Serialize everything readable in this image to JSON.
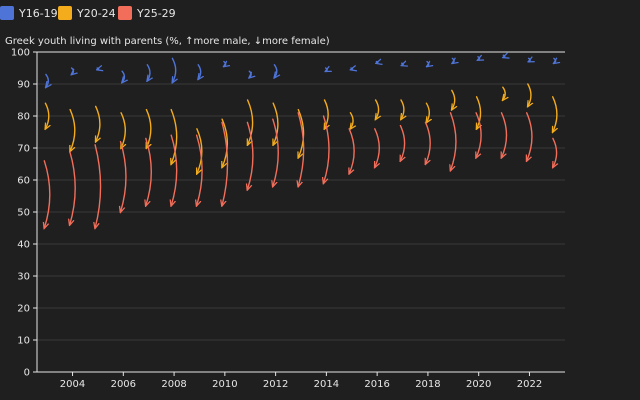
{
  "chart_data": {
    "type": "arrow-scatter",
    "title": "Greek youth living with parents (%, ↑more male, ↓more female)",
    "xlabel": "",
    "ylabel": "",
    "ylim": [
      0,
      100
    ],
    "yticks": [
      0,
      10,
      20,
      30,
      40,
      50,
      60,
      70,
      80,
      90,
      100
    ],
    "xlim": [
      2002.6,
      2023.4
    ],
    "xticks": [
      2004,
      2006,
      2008,
      2010,
      2012,
      2014,
      2016,
      2018,
      2020,
      2022
    ],
    "grid": true,
    "legend": "top-left",
    "series": [
      {
        "name": "Y16-19",
        "color": "#4f74d8",
        "points": [
          {
            "x": 2003,
            "male": 93,
            "female": 89
          },
          {
            "x": 2004,
            "male": 95,
            "female": 93
          },
          {
            "x": 2005,
            "male": 95,
            "female": 94.5
          },
          {
            "x": 2006,
            "male": 94,
            "female": 90.5
          },
          {
            "x": 2007,
            "male": 96,
            "female": 91
          },
          {
            "x": 2008,
            "male": 98,
            "female": 90.5
          },
          {
            "x": 2009,
            "male": 96,
            "female": 91.5
          },
          {
            "x": 2010,
            "male": 97,
            "female": 95.5
          },
          {
            "x": 2011,
            "male": 94,
            "female": 92
          },
          {
            "x": 2012,
            "male": 96,
            "female": 92
          },
          {
            "x": 2014,
            "male": 95,
            "female": 94
          },
          {
            "x": 2015,
            "male": 95,
            "female": 94.5
          },
          {
            "x": 2016,
            "male": 97,
            "female": 96.5
          },
          {
            "x": 2017,
            "male": 96.5,
            "female": 95.8
          },
          {
            "x": 2018,
            "male": 97,
            "female": 95.5
          },
          {
            "x": 2019,
            "male": 98,
            "female": 96.5
          },
          {
            "x": 2020,
            "male": 98.5,
            "female": 97.5
          },
          {
            "x": 2021,
            "male": 99,
            "female": 98.3
          },
          {
            "x": 2022,
            "male": 98,
            "female": 97
          },
          {
            "x": 2023,
            "male": 98,
            "female": 96.5
          }
        ]
      },
      {
        "name": "Y20-24",
        "color": "#f4ac1d",
        "points": [
          {
            "x": 2003,
            "male": 84,
            "female": 76
          },
          {
            "x": 2004,
            "male": 82,
            "female": 69
          },
          {
            "x": 2005,
            "male": 83,
            "female": 72
          },
          {
            "x": 2006,
            "male": 81,
            "female": 70
          },
          {
            "x": 2007,
            "male": 82,
            "female": 70
          },
          {
            "x": 2008,
            "male": 82,
            "female": 65
          },
          {
            "x": 2009,
            "male": 76,
            "female": 62
          },
          {
            "x": 2010,
            "male": 79,
            "female": 64
          },
          {
            "x": 2011,
            "male": 85,
            "female": 71
          },
          {
            "x": 2012,
            "male": 84,
            "female": 71
          },
          {
            "x": 2013,
            "male": 82,
            "female": 67
          },
          {
            "x": 2014,
            "male": 85,
            "female": 76
          },
          {
            "x": 2015,
            "male": 81,
            "female": 76
          },
          {
            "x": 2016,
            "male": 85,
            "female": 79
          },
          {
            "x": 2017,
            "male": 85,
            "female": 79
          },
          {
            "x": 2018,
            "male": 84,
            "female": 78
          },
          {
            "x": 2019,
            "male": 88,
            "female": 82
          },
          {
            "x": 2020,
            "male": 86,
            "female": 76
          },
          {
            "x": 2021,
            "male": 89,
            "female": 85
          },
          {
            "x": 2022,
            "male": 90,
            "female": 83
          },
          {
            "x": 2023,
            "male": 86,
            "female": 75
          }
        ]
      },
      {
        "name": "Y25-29",
        "color": "#f26e5a",
        "points": [
          {
            "x": 2003,
            "male": 66,
            "female": 45
          },
          {
            "x": 2004,
            "male": 69,
            "female": 46
          },
          {
            "x": 2005,
            "male": 71,
            "female": 45
          },
          {
            "x": 2006,
            "male": 72,
            "female": 50
          },
          {
            "x": 2007,
            "male": 73,
            "female": 52
          },
          {
            "x": 2008,
            "male": 74,
            "female": 52
          },
          {
            "x": 2009,
            "male": 74,
            "female": 52
          },
          {
            "x": 2010,
            "male": 78,
            "female": 52
          },
          {
            "x": 2011,
            "male": 78,
            "female": 57
          },
          {
            "x": 2012,
            "male": 79,
            "female": 58
          },
          {
            "x": 2013,
            "male": 81,
            "female": 58
          },
          {
            "x": 2014,
            "male": 80,
            "female": 59
          },
          {
            "x": 2015,
            "male": 76,
            "female": 62
          },
          {
            "x": 2016,
            "male": 76,
            "female": 64
          },
          {
            "x": 2017,
            "male": 77,
            "female": 66
          },
          {
            "x": 2018,
            "male": 78,
            "female": 65
          },
          {
            "x": 2019,
            "male": 81,
            "female": 63
          },
          {
            "x": 2020,
            "male": 81,
            "female": 67
          },
          {
            "x": 2021,
            "male": 81,
            "female": 67
          },
          {
            "x": 2022,
            "male": 81,
            "female": 66
          },
          {
            "x": 2023,
            "male": 73,
            "female": 64
          }
        ]
      }
    ]
  }
}
